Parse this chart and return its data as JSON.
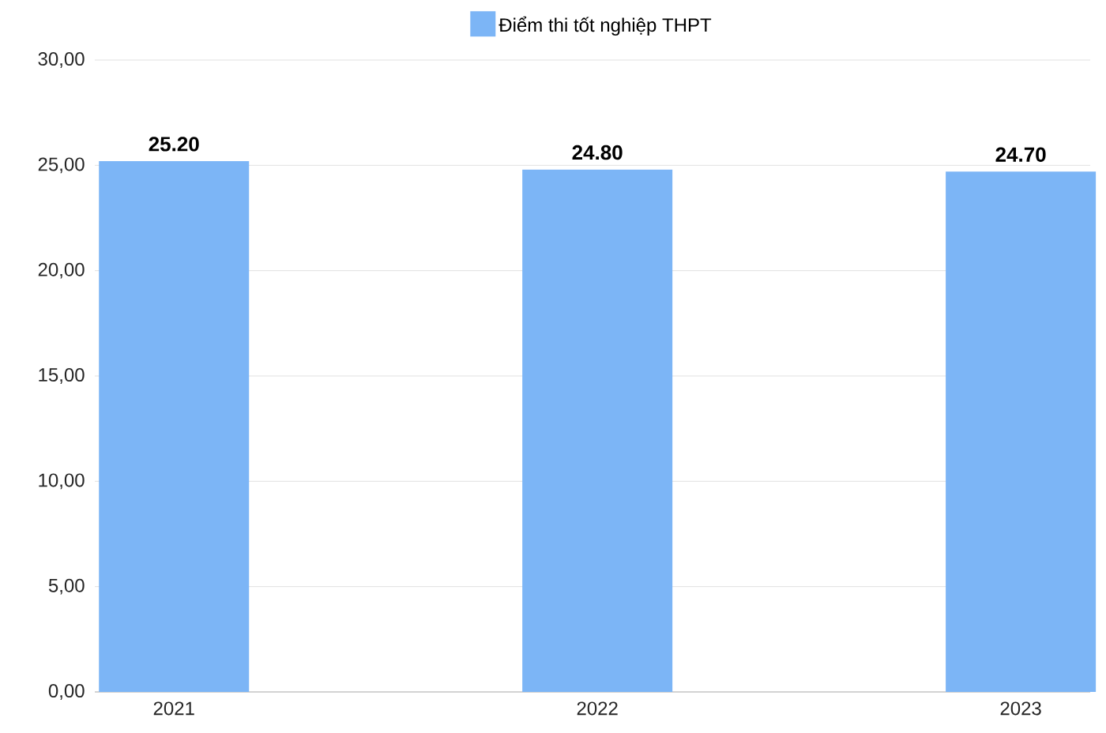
{
  "chart_data": {
    "type": "bar",
    "categories": [
      "2021",
      "2022",
      "2023"
    ],
    "series": [
      {
        "name": "Điểm thi tốt nghiệp THPT",
        "color": "#7cb5f6",
        "values": [
          25.2,
          24.8,
          24.7
        ],
        "value_labels": [
          "25.20",
          "24.80",
          "24.70"
        ]
      }
    ],
    "ylim": [
      0,
      30
    ],
    "yticks": [
      {
        "value": 0,
        "label": "0,00"
      },
      {
        "value": 5,
        "label": "5,00"
      },
      {
        "value": 10,
        "label": "10,00"
      },
      {
        "value": 15,
        "label": "15,00"
      },
      {
        "value": 20,
        "label": "20,00"
      },
      {
        "value": 25,
        "label": "25,00"
      },
      {
        "value": 30,
        "label": "30,00"
      }
    ],
    "grid": "y",
    "legend": "top"
  }
}
